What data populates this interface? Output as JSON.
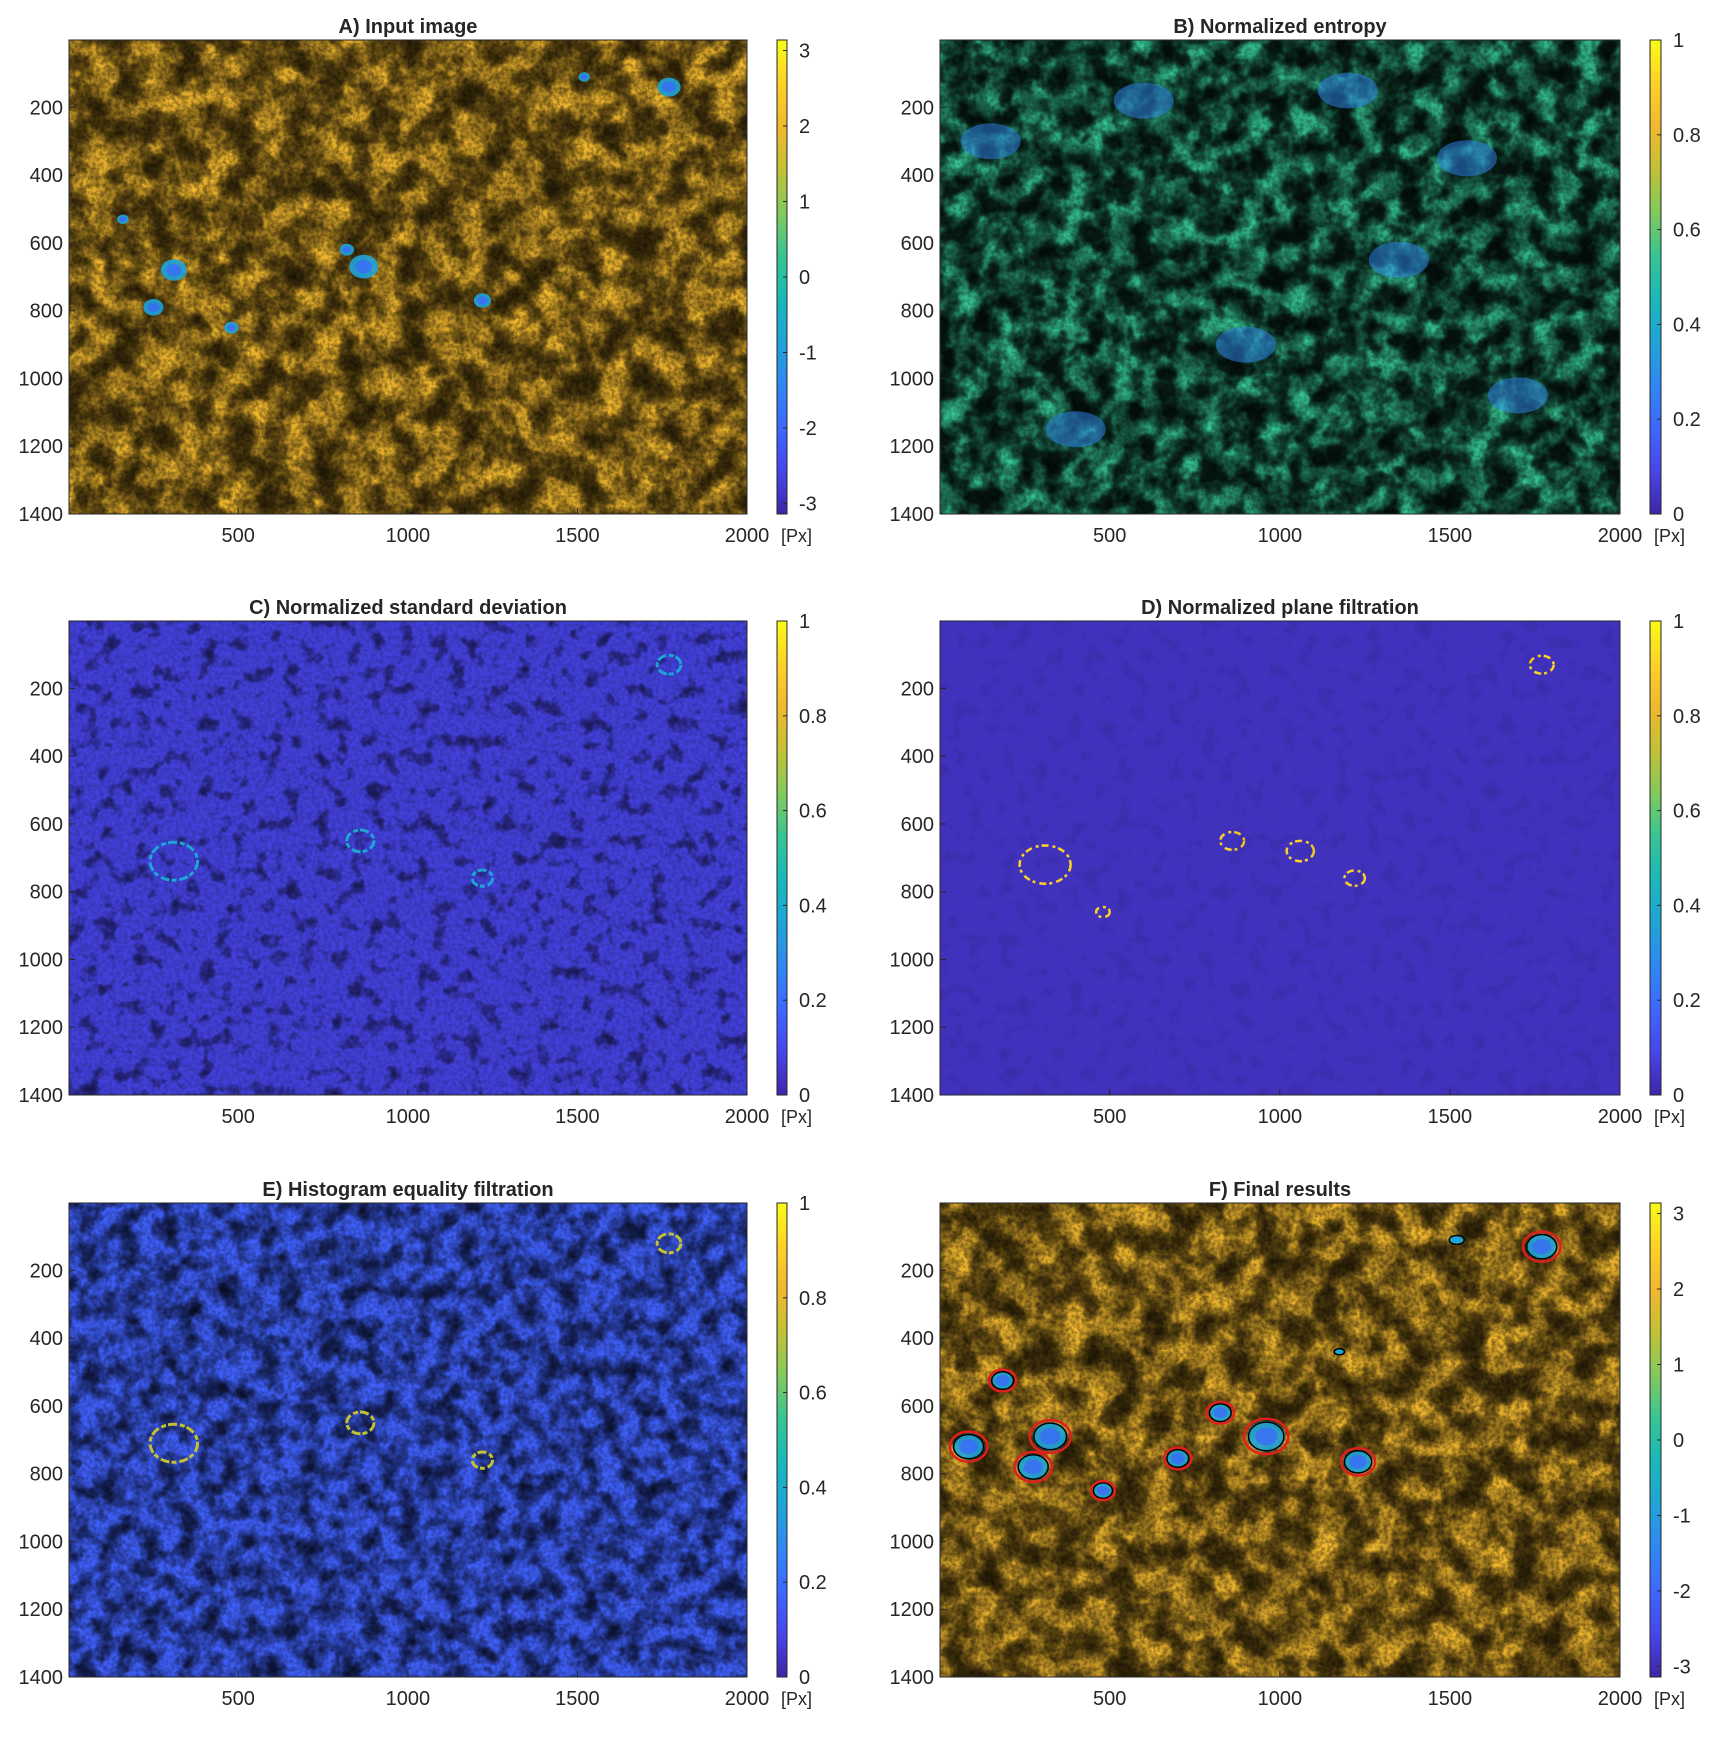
{
  "chart_data": [
    {
      "type": "heatmap",
      "title": "A) Input image",
      "xlabel": "",
      "ylabel": "",
      "xlim": [
        1,
        2000
      ],
      "ylim": [
        1400,
        1
      ],
      "xticks": [
        "500",
        "1000",
        "1500",
        "2000"
      ],
      "yticks": [
        "200",
        "400",
        "600",
        "800",
        "1000",
        "1200",
        "1400"
      ],
      "x_unit": "[Px]",
      "colorbar": {
        "range": [
          -3.14,
          3.14
        ],
        "ticks": [
          "3",
          "2",
          "1",
          "0",
          "-1",
          "-2",
          "-3"
        ]
      },
      "background": "yellow-orange texture with blue-green speckle",
      "features": [
        {
          "x": 310,
          "y": 680,
          "r": 45
        },
        {
          "x": 250,
          "y": 790,
          "r": 35
        },
        {
          "x": 870,
          "y": 670,
          "r": 50
        },
        {
          "x": 820,
          "y": 620,
          "r": 25
        },
        {
          "x": 1220,
          "y": 770,
          "r": 30
        },
        {
          "x": 1770,
          "y": 140,
          "r": 40
        },
        {
          "x": 1520,
          "y": 110,
          "r": 20
        },
        {
          "x": 480,
          "y": 850,
          "r": 25
        },
        {
          "x": 160,
          "y": 530,
          "r": 20
        }
      ]
    },
    {
      "type": "heatmap",
      "title": "B) Normalized entropy",
      "xlabel": "",
      "ylabel": "",
      "xlim": [
        1,
        2000
      ],
      "ylim": [
        1400,
        1
      ],
      "xticks": [
        "500",
        "1000",
        "1500",
        "2000"
      ],
      "yticks": [
        "200",
        "400",
        "600",
        "800",
        "1000",
        "1200",
        "1400"
      ],
      "x_unit": "[Px]",
      "colorbar": {
        "range": [
          0,
          1
        ],
        "ticks": [
          "1",
          "0.8",
          "0.6",
          "0.4",
          "0.2",
          "0"
        ]
      },
      "background": "green-cyan mottled texture with blue patches",
      "features": []
    },
    {
      "type": "heatmap",
      "title": "C) Normalized standard deviation",
      "xlabel": "",
      "ylabel": "",
      "xlim": [
        1,
        2000
      ],
      "ylim": [
        1400,
        1
      ],
      "xticks": [
        "500",
        "1000",
        "1500",
        "2000"
      ],
      "yticks": [
        "200",
        "400",
        "600",
        "800",
        "1000",
        "1200",
        "1400"
      ],
      "x_unit": "[Px]",
      "colorbar": {
        "range": [
          0,
          1
        ],
        "ticks": [
          "1",
          "0.8",
          "0.6",
          "0.4",
          "0.2",
          "0"
        ]
      },
      "background": "dark blue with faint light-blue outlines",
      "features": [
        {
          "x": 310,
          "y": 710,
          "r": 70
        },
        {
          "x": 860,
          "y": 650,
          "r": 40
        },
        {
          "x": 1220,
          "y": 760,
          "r": 30
        },
        {
          "x": 1770,
          "y": 130,
          "r": 35
        }
      ]
    },
    {
      "type": "heatmap",
      "title": "D) Normalized plane filtration",
      "xlabel": "",
      "ylabel": "",
      "xlim": [
        1,
        2000
      ],
      "ylim": [
        1400,
        1
      ],
      "xticks": [
        "500",
        "1000",
        "1500",
        "2000"
      ],
      "yticks": [
        "200",
        "400",
        "600",
        "800",
        "1000",
        "1200",
        "1400"
      ],
      "x_unit": "[Px]",
      "colorbar": {
        "range": [
          0,
          1
        ],
        "ticks": [
          "1",
          "0.8",
          "0.6",
          "0.4",
          "0.2",
          "0"
        ]
      },
      "background": "uniform dark blue with yellow contour fragments",
      "features": [
        {
          "x": 310,
          "y": 720,
          "r": 75
        },
        {
          "x": 860,
          "y": 650,
          "r": 35
        },
        {
          "x": 1220,
          "y": 760,
          "r": 30
        },
        {
          "x": 1770,
          "y": 130,
          "r": 35
        },
        {
          "x": 480,
          "y": 860,
          "r": 20
        },
        {
          "x": 1060,
          "y": 680,
          "r": 40
        }
      ]
    },
    {
      "type": "heatmap",
      "title": "E) Histogram equality filtration",
      "xlabel": "",
      "ylabel": "",
      "xlim": [
        1,
        2000
      ],
      "ylim": [
        1400,
        1
      ],
      "xticks": [
        "500",
        "1000",
        "1500",
        "2000"
      ],
      "yticks": [
        "200",
        "400",
        "600",
        "800",
        "1000",
        "1200",
        "1400"
      ],
      "x_unit": "[Px]",
      "colorbar": {
        "range": [
          0,
          1
        ],
        "ticks": [
          "1",
          "0.8",
          "0.6",
          "0.4",
          "0.2",
          "0"
        ]
      },
      "background": "blue with cyan-green blobs",
      "features": [
        {
          "x": 310,
          "y": 710,
          "r": 70
        },
        {
          "x": 860,
          "y": 650,
          "r": 40
        },
        {
          "x": 1220,
          "y": 760,
          "r": 30
        },
        {
          "x": 1770,
          "y": 120,
          "r": 35
        }
      ]
    },
    {
      "type": "heatmap",
      "title": "F) Final results",
      "xlabel": "",
      "ylabel": "",
      "xlim": [
        1,
        2000
      ],
      "ylim": [
        1400,
        1
      ],
      "xticks": [
        "500",
        "1000",
        "1500",
        "2000"
      ],
      "yticks": [
        "200",
        "400",
        "600",
        "800",
        "1000",
        "1200",
        "1400"
      ],
      "x_unit": "[Px]",
      "colorbar": {
        "range": [
          -3.14,
          3.14
        ],
        "ticks": [
          "3",
          "2",
          "1",
          "0",
          "-1",
          "-2",
          "-3"
        ]
      },
      "background": "yellow-orange texture with blue-green speckle",
      "detections": [
        {
          "x": 1770,
          "y": 130,
          "r": 55
        },
        {
          "x": 185,
          "y": 525,
          "r": 40
        },
        {
          "x": 85,
          "y": 720,
          "r": 55
        },
        {
          "x": 325,
          "y": 690,
          "r": 60
        },
        {
          "x": 275,
          "y": 780,
          "r": 55
        },
        {
          "x": 480,
          "y": 850,
          "r": 35
        },
        {
          "x": 700,
          "y": 755,
          "r": 40
        },
        {
          "x": 825,
          "y": 620,
          "r": 40
        },
        {
          "x": 960,
          "y": 690,
          "r": 65
        },
        {
          "x": 1230,
          "y": 765,
          "r": 50
        }
      ],
      "contours": [
        {
          "x": 1520,
          "y": 110,
          "r": 22
        },
        {
          "x": 1175,
          "y": 440,
          "r": 15
        }
      ],
      "detection_color": "#e0201c",
      "contour_color": "#000000"
    }
  ],
  "colormap": [
    "#3e26a8",
    "#4746eb",
    "#3e68fe",
    "#2f88f3",
    "#1fa4d7",
    "#1ab8ba",
    "#36c593",
    "#82ca5c",
    "#c2c135",
    "#f1b82f",
    "#fdd227",
    "#f9fb15"
  ]
}
